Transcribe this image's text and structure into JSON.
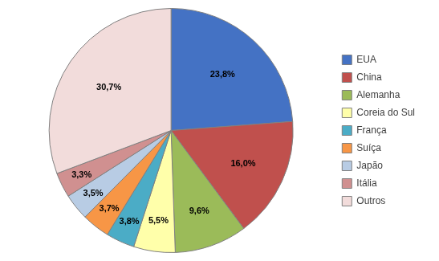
{
  "chart_data": {
    "type": "pie",
    "categories": [
      "EUA",
      "China",
      "Alemanha",
      "Coreia do Sul",
      "França",
      "Suíça",
      "Japão",
      "Itália",
      "Outros"
    ],
    "values": [
      23.8,
      16.0,
      9.6,
      5.5,
      3.8,
      3.7,
      3.5,
      3.3,
      30.7
    ],
    "value_labels": [
      "23,8%",
      "16,0%",
      "9,6%",
      "5,5%",
      "3,8%",
      "3,7%",
      "3,5%",
      "3,3%",
      "30,7%"
    ],
    "colors": [
      "#4472C4",
      "#C0504D",
      "#9BBB59",
      "#FFFFAA",
      "#4BACC6",
      "#F79646",
      "#B8CCE4",
      "#D09090",
      "#F2DCDB"
    ],
    "data_labels": true,
    "legend": "right"
  }
}
